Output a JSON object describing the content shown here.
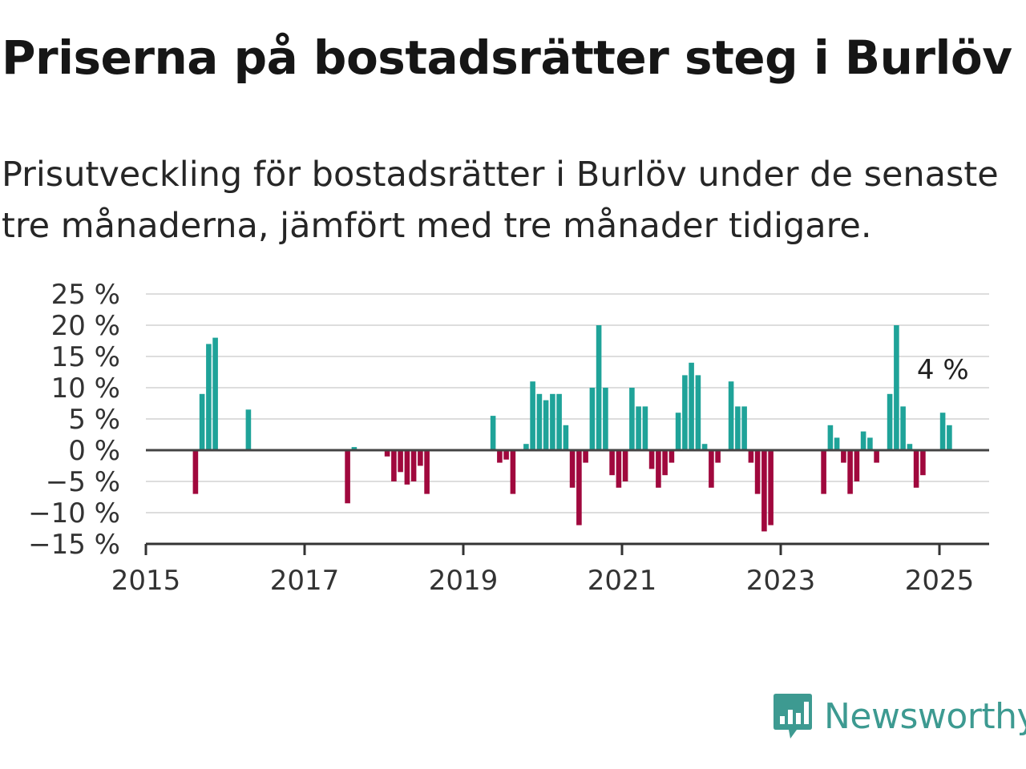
{
  "title": "Priserna på bostadsrätter steg i Burlöv",
  "subtitle": "Prisutveckling för bostadsrätter i Burlöv under de senaste tre månaderna, jämfört med tre månader tidigare.",
  "brand": {
    "name": "Newsworthy",
    "icon": "newsworthy-logo-icon"
  },
  "colors": {
    "positive": "#1fa399",
    "negative": "#a0083d",
    "grid": "#dddddd",
    "zero_line": "#444444"
  },
  "chart_data": {
    "type": "bar",
    "title": "",
    "xlabel": "",
    "ylabel": "",
    "ylim": [
      -15,
      25
    ],
    "y_ticks": [
      25,
      20,
      15,
      10,
      5,
      0,
      -5,
      -10,
      -15
    ],
    "y_tick_labels": [
      "25 %",
      "20 %",
      "15 %",
      "10 %",
      "5 %",
      "0 %",
      "−5 %",
      "−10 %",
      "−15 %"
    ],
    "x_ticks": [
      "2015",
      "2017",
      "2019",
      "2021",
      "2023",
      "2025"
    ],
    "grid": true,
    "last_label": "4 %",
    "series": [
      {
        "values": [
          [
            "2015-08",
            -7
          ],
          [
            "2015-09",
            9
          ],
          [
            "2015-10",
            17
          ],
          [
            "2015-11",
            18
          ],
          [
            "2016-04",
            6.5
          ],
          [
            "2017-07",
            -8.5
          ],
          [
            "2017-08",
            0.5
          ],
          [
            "2018-01",
            -1
          ],
          [
            "2018-02",
            -5
          ],
          [
            "2018-03",
            -3.5
          ],
          [
            "2018-04",
            -5.5
          ],
          [
            "2018-05",
            -5
          ],
          [
            "2018-06",
            -2.5
          ],
          [
            "2018-07",
            -7
          ],
          [
            "2019-05",
            5.5
          ],
          [
            "2019-06",
            -2
          ],
          [
            "2019-07",
            -1.5
          ],
          [
            "2019-08",
            -7
          ],
          [
            "2019-10",
            1
          ],
          [
            "2019-11",
            11
          ],
          [
            "2019-12",
            9
          ],
          [
            "2020-01",
            8
          ],
          [
            "2020-02",
            9
          ],
          [
            "2020-03",
            9
          ],
          [
            "2020-04",
            4
          ],
          [
            "2020-05",
            -6
          ],
          [
            "2020-06",
            -12
          ],
          [
            "2020-07",
            -2
          ],
          [
            "2020-08",
            10
          ],
          [
            "2020-09",
            20
          ],
          [
            "2020-10",
            10
          ],
          [
            "2020-11",
            -4
          ],
          [
            "2020-12",
            -6
          ],
          [
            "2021-01",
            -5
          ],
          [
            "2021-02",
            10
          ],
          [
            "2021-03",
            7
          ],
          [
            "2021-04",
            7
          ],
          [
            "2021-05",
            -3
          ],
          [
            "2021-06",
            -6
          ],
          [
            "2021-07",
            -4
          ],
          [
            "2021-08",
            -2
          ],
          [
            "2021-09",
            6
          ],
          [
            "2021-10",
            12
          ],
          [
            "2021-11",
            14
          ],
          [
            "2021-12",
            12
          ],
          [
            "2022-01",
            1
          ],
          [
            "2022-02",
            -6
          ],
          [
            "2022-03",
            -2
          ],
          [
            "2022-05",
            11
          ],
          [
            "2022-06",
            7
          ],
          [
            "2022-07",
            7
          ],
          [
            "2022-08",
            -2
          ],
          [
            "2022-09",
            -7
          ],
          [
            "2022-10",
            -13
          ],
          [
            "2022-11",
            -12
          ],
          [
            "2023-07",
            -7
          ],
          [
            "2023-08",
            4
          ],
          [
            "2023-09",
            2
          ],
          [
            "2023-10",
            -2
          ],
          [
            "2023-11",
            -7
          ],
          [
            "2023-12",
            -5
          ],
          [
            "2024-01",
            3
          ],
          [
            "2024-02",
            2
          ],
          [
            "2024-03",
            -2
          ],
          [
            "2024-05",
            9
          ],
          [
            "2024-06",
            20
          ],
          [
            "2024-07",
            7
          ],
          [
            "2024-08",
            1
          ],
          [
            "2024-09",
            -6
          ],
          [
            "2024-10",
            -4
          ],
          [
            "2025-01",
            6
          ],
          [
            "2025-02",
            4
          ]
        ]
      }
    ]
  }
}
